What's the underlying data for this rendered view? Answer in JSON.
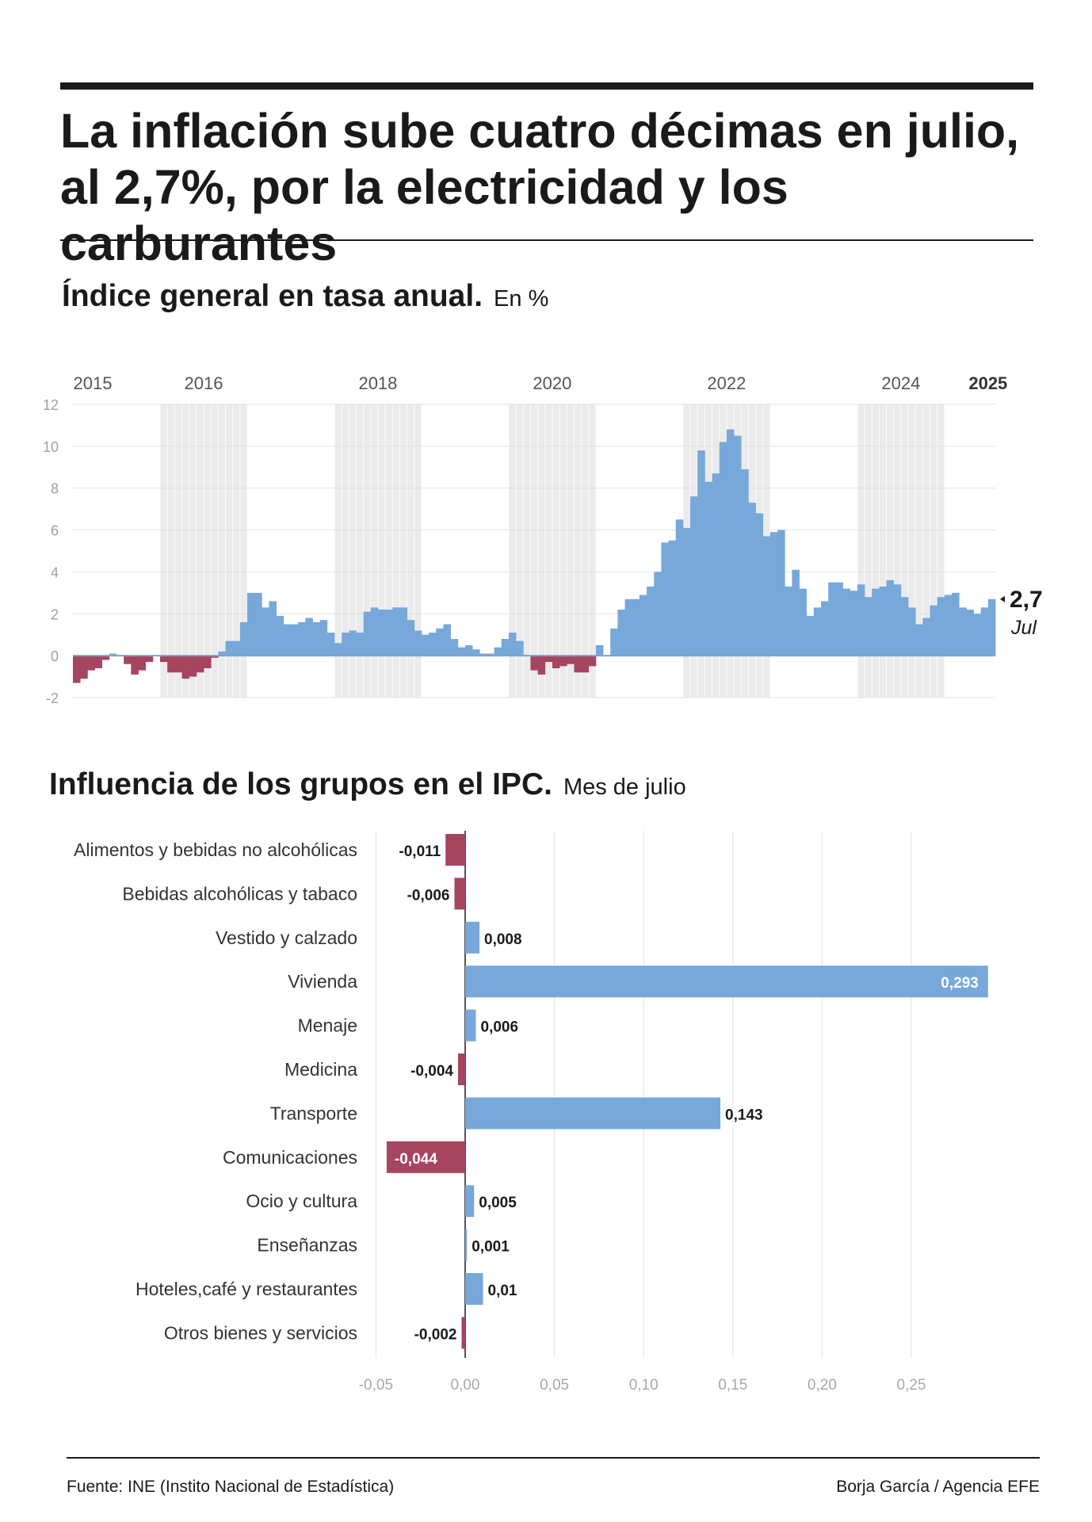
{
  "header": {
    "title": "La inflación sube cuatro décimas en julio, al 2,7%, por la electricidad y los carburantes"
  },
  "section1": {
    "title": "Índice general en tasa anual.",
    "subtitle": "En %"
  },
  "section2": {
    "title": "Influencia de los grupos en el IPC.",
    "subtitle": "Mes de julio"
  },
  "footer": {
    "source": "Fuente: INE (Instito Nacional de Estadística)",
    "credit": "Borja García / Agencia EFE"
  },
  "colors": {
    "positive": "#77a8d9",
    "negative": "#a6455f",
    "shade": "#ebebeb"
  },
  "chart_data": [
    {
      "type": "bar",
      "x_tick_labels": [
        "2015",
        "2016",
        "2018",
        "2020",
        "2022",
        "2024",
        "2025"
      ],
      "y_ticks": [
        "12",
        "10",
        "8",
        "6",
        "4",
        "2",
        "0",
        "-2"
      ],
      "ylim": [
        -2,
        12
      ],
      "start": "2015-01",
      "end": "2025-07",
      "values": [
        -1.3,
        -1.1,
        -0.7,
        -0.6,
        -0.2,
        0.1,
        0.0,
        -0.4,
        -0.9,
        -0.7,
        -0.3,
        0.0,
        -0.3,
        -0.8,
        -0.8,
        -1.1,
        -1.0,
        -0.8,
        -0.6,
        -0.1,
        0.2,
        0.7,
        0.7,
        1.6,
        3.0,
        3.0,
        2.3,
        2.6,
        1.9,
        1.5,
        1.5,
        1.6,
        1.8,
        1.6,
        1.7,
        1.1,
        0.6,
        1.1,
        1.2,
        1.1,
        2.1,
        2.3,
        2.2,
        2.2,
        2.3,
        2.3,
        1.7,
        1.2,
        1.0,
        1.1,
        1.3,
        1.5,
        0.8,
        0.4,
        0.5,
        0.3,
        0.1,
        0.1,
        0.4,
        0.8,
        1.1,
        0.7,
        0.0,
        -0.7,
        -0.9,
        -0.3,
        -0.6,
        -0.5,
        -0.4,
        -0.8,
        -0.8,
        -0.5,
        0.5,
        0.0,
        1.3,
        2.2,
        2.7,
        2.7,
        2.9,
        3.3,
        4.0,
        5.4,
        5.5,
        6.5,
        6.1,
        7.6,
        9.8,
        8.3,
        8.7,
        10.2,
        10.8,
        10.5,
        8.9,
        7.3,
        6.8,
        5.7,
        5.9,
        6.0,
        3.3,
        4.1,
        3.2,
        1.9,
        2.3,
        2.6,
        3.5,
        3.5,
        3.2,
        3.1,
        3.4,
        2.8,
        3.2,
        3.3,
        3.6,
        3.4,
        2.8,
        2.3,
        1.5,
        1.8,
        2.4,
        2.8,
        2.9,
        3.0,
        2.3,
        2.2,
        2.0,
        2.3,
        2.7
      ],
      "last_label": {
        "value": "2,7",
        "month": "Jul"
      },
      "shaded_years": [
        2016,
        2018,
        2020,
        2022,
        2024
      ],
      "grid": true
    },
    {
      "type": "bar",
      "orientation": "horizontal",
      "categories": [
        "Alimentos y bebidas no alcohólicas",
        "Bebidas alcohólicas y tabaco",
        "Vestido y calzado",
        "Vivienda",
        "Menaje",
        "Medicina",
        "Transporte",
        "Comunicaciones",
        "Ocio y cultura",
        "Enseñanzas",
        "Hoteles,café y restaurantes",
        "Otros bienes y servicios"
      ],
      "values": [
        -0.011,
        -0.006,
        0.008,
        0.293,
        0.006,
        -0.004,
        0.143,
        -0.044,
        0.005,
        0.001,
        0.01,
        -0.002
      ],
      "value_labels": [
        "-0,011",
        "-0,006",
        "0,008",
        "0,293",
        "0,006",
        "-0,004",
        "0,143",
        "-0,044",
        "0,005",
        "0,001",
        "0,01",
        "-0,002"
      ],
      "x_ticks": [
        -0.05,
        0,
        0.05,
        0.1,
        0.15,
        0.2,
        0.25
      ],
      "x_tick_labels": [
        "-0,05",
        "0,00",
        "0,05",
        "0,10",
        "0,15",
        "0,20",
        "0,25"
      ],
      "xlim": [
        -0.05,
        0.3
      ],
      "grid": true
    }
  ]
}
